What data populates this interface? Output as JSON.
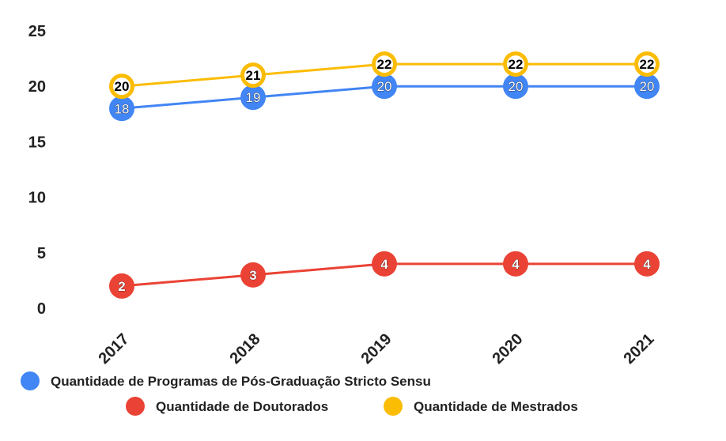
{
  "chart_data": {
    "type": "line",
    "categories": [
      "2017",
      "2018",
      "2019",
      "2020",
      "2021"
    ],
    "ylim": [
      0,
      25
    ],
    "yticks": [
      "0",
      "5",
      "10",
      "15",
      "20",
      "25"
    ],
    "grid": false,
    "legend_position": "bottom",
    "series": [
      {
        "name": "Quantidade de Programas de Pós-Graduação Stricto Sensu",
        "color": "#4285F4",
        "values": [
          18,
          19,
          20,
          20,
          20
        ],
        "labels": [
          "18",
          "19",
          "20",
          "20",
          "20"
        ]
      },
      {
        "name": "Quantidade de Doutorados",
        "color": "#EA4335",
        "values": [
          2,
          3,
          4,
          4,
          4
        ],
        "labels": [
          "2",
          "3",
          "4",
          "4",
          "4"
        ]
      },
      {
        "name": "Quantidade de Mestrados",
        "color": "#FBBC04",
        "values": [
          20,
          21,
          22,
          22,
          22
        ],
        "labels": [
          "20",
          "21",
          "22",
          "22",
          "22"
        ]
      }
    ]
  }
}
